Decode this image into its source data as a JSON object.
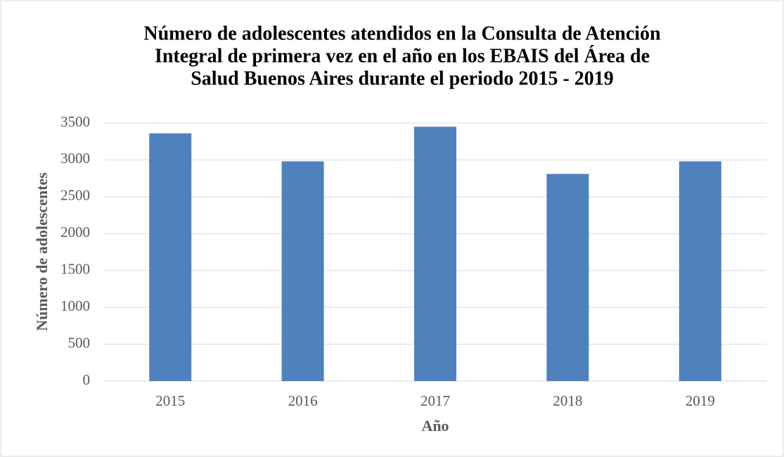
{
  "chart_data": {
    "type": "bar",
    "title": [
      "Número de adolescentes atendidos en la Consulta de Atención",
      "Integral de primera vez en el año en los EBAIS del Área de",
      "Salud Buenos Aires durante el periodo 2015 - 2019"
    ],
    "x_label": "Año",
    "y_label": "Número de adolescentes",
    "categories": [
      "2015",
      "2016",
      "2017",
      "2018",
      "2019"
    ],
    "values": [
      3360,
      2980,
      3450,
      2810,
      2980
    ],
    "color": "#4f81bd",
    "ylim": [
      0,
      3500
    ],
    "yticks": [
      0,
      500,
      1000,
      1500,
      2000,
      2500,
      3000,
      3500
    ],
    "grid": true
  }
}
